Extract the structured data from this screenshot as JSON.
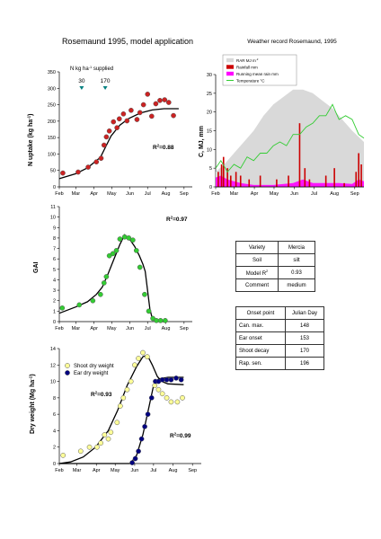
{
  "titles": {
    "main": "Rosemaund 1995, model application",
    "weather": "Weather record Rosemaund, 1995"
  },
  "months": [
    "Feb",
    "Mar",
    "Apr",
    "May",
    "Jun",
    "Jul",
    "Aug",
    "Sep"
  ],
  "month_start_doy": [
    32,
    60,
    91,
    121,
    152,
    182,
    213,
    244
  ],
  "chart_data": [
    {
      "id": "n_uptake",
      "type": "scatter",
      "ylabel": "N uptake (kg ha-1)",
      "ylabel_main": "N uptake (kg ha",
      "ylabel_sup": "-1",
      "ylabel_end": ")",
      "ylim": [
        0,
        350
      ],
      "yticks": [
        0,
        50,
        100,
        150,
        200,
        250,
        300,
        350
      ],
      "xlim": [
        32,
        258
      ],
      "annotation_main": "N kg ha",
      "annotation_sup": "-1",
      "annotation_end": " supplied",
      "n_applications": [
        {
          "doy": 70,
          "label": "30"
        },
        {
          "doy": 110,
          "label": "170"
        }
      ],
      "r2_main": "R",
      "r2_sup": "2",
      "r2_value": "=0.88",
      "points": [
        {
          "x": 38,
          "y": 42
        },
        {
          "x": 64,
          "y": 45
        },
        {
          "x": 81,
          "y": 60
        },
        {
          "x": 95,
          "y": 76
        },
        {
          "x": 103,
          "y": 87
        },
        {
          "x": 108,
          "y": 127
        },
        {
          "x": 112,
          "y": 152
        },
        {
          "x": 117,
          "y": 170
        },
        {
          "x": 124,
          "y": 198
        },
        {
          "x": 130,
          "y": 180
        },
        {
          "x": 134,
          "y": 207
        },
        {
          "x": 141,
          "y": 222
        },
        {
          "x": 147,
          "y": 201
        },
        {
          "x": 154,
          "y": 233
        },
        {
          "x": 164,
          "y": 205
        },
        {
          "x": 169,
          "y": 226
        },
        {
          "x": 175,
          "y": 250
        },
        {
          "x": 182,
          "y": 282
        },
        {
          "x": 189,
          "y": 215
        },
        {
          "x": 196,
          "y": 253
        },
        {
          "x": 203,
          "y": 263
        },
        {
          "x": 211,
          "y": 265
        },
        {
          "x": 218,
          "y": 257
        },
        {
          "x": 226,
          "y": 217
        }
      ],
      "model": [
        {
          "x": 32,
          "y": 25
        },
        {
          "x": 60,
          "y": 40
        },
        {
          "x": 80,
          "y": 58
        },
        {
          "x": 95,
          "y": 80
        },
        {
          "x": 102,
          "y": 90
        },
        {
          "x": 108,
          "y": 112
        },
        {
          "x": 120,
          "y": 155
        },
        {
          "x": 135,
          "y": 188
        },
        {
          "x": 150,
          "y": 208
        },
        {
          "x": 170,
          "y": 225
        },
        {
          "x": 190,
          "y": 234
        },
        {
          "x": 210,
          "y": 238
        },
        {
          "x": 235,
          "y": 238
        }
      ]
    },
    {
      "id": "weather",
      "type": "area",
      "title": "Weather record Rosemaund, 1995",
      "ylabel": "C, MJ, mm",
      "ylim": [
        0,
        30
      ],
      "yticks": [
        0,
        5,
        10,
        15,
        20,
        25,
        30
      ],
      "xlim": [
        32,
        258
      ],
      "legend": [
        "RAR MJ m-2",
        "Rainfall mm",
        "Running mean rain mm",
        "Temperature °C"
      ],
      "legend_main": [
        "RAR MJ m",
        "Rainfall mm",
        "Running mean rain mm",
        "Temperature °C"
      ],
      "legend_sup": [
        "-2",
        "",
        "",
        ""
      ],
      "series_colors": {
        "radiation": "#d9d9d9",
        "rainfall": "#cc0000",
        "running_mean": "#ff00ff",
        "temperature": "#33cc33"
      },
      "temperature": [
        {
          "x": 32,
          "y": 5
        },
        {
          "x": 40,
          "y": 7
        },
        {
          "x": 50,
          "y": 4
        },
        {
          "x": 60,
          "y": 6
        },
        {
          "x": 70,
          "y": 5
        },
        {
          "x": 80,
          "y": 8
        },
        {
          "x": 90,
          "y": 7
        },
        {
          "x": 100,
          "y": 9
        },
        {
          "x": 110,
          "y": 9
        },
        {
          "x": 120,
          "y": 11
        },
        {
          "x": 130,
          "y": 12
        },
        {
          "x": 140,
          "y": 11
        },
        {
          "x": 150,
          "y": 14
        },
        {
          "x": 160,
          "y": 14
        },
        {
          "x": 170,
          "y": 16
        },
        {
          "x": 180,
          "y": 17
        },
        {
          "x": 190,
          "y": 19
        },
        {
          "x": 200,
          "y": 19
        },
        {
          "x": 210,
          "y": 22
        },
        {
          "x": 215,
          "y": 20
        },
        {
          "x": 220,
          "y": 18
        },
        {
          "x": 230,
          "y": 19
        },
        {
          "x": 240,
          "y": 18
        },
        {
          "x": 250,
          "y": 14
        },
        {
          "x": 258,
          "y": 13
        }
      ],
      "radiation": [
        {
          "x": 32,
          "y": 4
        },
        {
          "x": 45,
          "y": 6
        },
        {
          "x": 60,
          "y": 9
        },
        {
          "x": 75,
          "y": 12
        },
        {
          "x": 90,
          "y": 15
        },
        {
          "x": 105,
          "y": 19
        },
        {
          "x": 120,
          "y": 22
        },
        {
          "x": 135,
          "y": 24
        },
        {
          "x": 150,
          "y": 26
        },
        {
          "x": 165,
          "y": 26
        },
        {
          "x": 180,
          "y": 25
        },
        {
          "x": 195,
          "y": 23
        },
        {
          "x": 210,
          "y": 21
        },
        {
          "x": 225,
          "y": 18
        },
        {
          "x": 240,
          "y": 15
        },
        {
          "x": 258,
          "y": 12
        }
      ],
      "rainfall": [
        {
          "x": 36,
          "y": 4
        },
        {
          "x": 41,
          "y": 6
        },
        {
          "x": 44,
          "y": 8
        },
        {
          "x": 50,
          "y": 5
        },
        {
          "x": 55,
          "y": 3
        },
        {
          "x": 63,
          "y": 4
        },
        {
          "x": 70,
          "y": 3
        },
        {
          "x": 83,
          "y": 2
        },
        {
          "x": 100,
          "y": 3
        },
        {
          "x": 125,
          "y": 2
        },
        {
          "x": 143,
          "y": 3
        },
        {
          "x": 160,
          "y": 17
        },
        {
          "x": 168,
          "y": 5
        },
        {
          "x": 175,
          "y": 2
        },
        {
          "x": 200,
          "y": 3
        },
        {
          "x": 213,
          "y": 5
        },
        {
          "x": 228,
          "y": 1
        },
        {
          "x": 246,
          "y": 4
        },
        {
          "x": 250,
          "y": 9
        },
        {
          "x": 254,
          "y": 6
        }
      ],
      "running_mean": [
        {
          "x": 32,
          "y": 2.5
        },
        {
          "x": 40,
          "y": 3
        },
        {
          "x": 50,
          "y": 2
        },
        {
          "x": 60,
          "y": 1.5
        },
        {
          "x": 70,
          "y": 1
        },
        {
          "x": 90,
          "y": 0.5
        },
        {
          "x": 120,
          "y": 0.5
        },
        {
          "x": 150,
          "y": 1
        },
        {
          "x": 165,
          "y": 2
        },
        {
          "x": 180,
          "y": 1
        },
        {
          "x": 200,
          "y": 1
        },
        {
          "x": 220,
          "y": 1
        },
        {
          "x": 240,
          "y": 0.8
        },
        {
          "x": 250,
          "y": 2
        },
        {
          "x": 258,
          "y": 1.5
        }
      ]
    },
    {
      "id": "gai",
      "type": "scatter",
      "ylabel": "GAI",
      "ylim": [
        0,
        11
      ],
      "yticks": [
        0,
        1,
        2,
        3,
        4,
        5,
        6,
        7,
        8,
        9,
        10,
        11
      ],
      "xlim": [
        32,
        258
      ],
      "r2_main": "R",
      "r2_sup": "2",
      "r2_value": "=0.97",
      "points": [
        {
          "x": 37,
          "y": 1.3
        },
        {
          "x": 66,
          "y": 1.6
        },
        {
          "x": 89,
          "y": 2.0
        },
        {
          "x": 102,
          "y": 2.6
        },
        {
          "x": 108,
          "y": 3.7
        },
        {
          "x": 112,
          "y": 4.3
        },
        {
          "x": 117,
          "y": 6.3
        },
        {
          "x": 123,
          "y": 6.5
        },
        {
          "x": 129,
          "y": 6.8
        },
        {
          "x": 135,
          "y": 7.9
        },
        {
          "x": 143,
          "y": 8.1
        },
        {
          "x": 150,
          "y": 8.0
        },
        {
          "x": 157,
          "y": 7.8
        },
        {
          "x": 163,
          "y": 6.8
        },
        {
          "x": 169,
          "y": 5.2
        },
        {
          "x": 177,
          "y": 2.6
        },
        {
          "x": 184,
          "y": 1.0
        },
        {
          "x": 191,
          "y": 0.3
        },
        {
          "x": 197,
          "y": 0.1
        },
        {
          "x": 204,
          "y": 0.1
        },
        {
          "x": 212,
          "y": 0.1
        }
      ],
      "model": [
        {
          "x": 32,
          "y": 0.8
        },
        {
          "x": 60,
          "y": 1.4
        },
        {
          "x": 80,
          "y": 1.9
        },
        {
          "x": 95,
          "y": 2.6
        },
        {
          "x": 105,
          "y": 3.3
        },
        {
          "x": 115,
          "y": 4.6
        },
        {
          "x": 125,
          "y": 6.0
        },
        {
          "x": 135,
          "y": 7.4
        },
        {
          "x": 143,
          "y": 8.3
        },
        {
          "x": 150,
          "y": 8.0
        },
        {
          "x": 160,
          "y": 7.2
        },
        {
          "x": 168,
          "y": 6.3
        },
        {
          "x": 174,
          "y": 5.5
        },
        {
          "x": 178,
          "y": 4.8
        },
        {
          "x": 182,
          "y": 3.0
        },
        {
          "x": 186,
          "y": 1.2
        },
        {
          "x": 190,
          "y": 0.3
        },
        {
          "x": 196,
          "y": 0
        },
        {
          "x": 215,
          "y": 0
        }
      ]
    },
    {
      "id": "dry_weight",
      "type": "scatter",
      "ylabel": "Dry weight (Mg ha-1)",
      "ylabel_main": "Dry weight (Mg ha",
      "ylabel_sup": "-1",
      "ylabel_end": ")",
      "ylim": [
        0,
        14
      ],
      "yticks": [
        0,
        2,
        4,
        6,
        8,
        10,
        12,
        14
      ],
      "xlim": [
        32,
        258
      ],
      "legend": [
        "Shoot dry weight",
        "Ear dry weight"
      ],
      "shoot_r2_main": "R",
      "shoot_r2_sup": "2",
      "shoot_r2_value": "=0.93",
      "ear_r2_main": "R",
      "ear_r2_sup": "2",
      "ear_r2_value": "=0.99",
      "series": [
        {
          "name": "Shoot dry weight",
          "points": [
            {
              "x": 38,
              "y": 1.0
            },
            {
              "x": 66,
              "y": 1.5
            },
            {
              "x": 80,
              "y": 2.0
            },
            {
              "x": 92,
              "y": 2.0
            },
            {
              "x": 98,
              "y": 2.5
            },
            {
              "x": 104,
              "y": 3.5
            },
            {
              "x": 110,
              "y": 3.0
            },
            {
              "x": 114,
              "y": 3.8
            },
            {
              "x": 124,
              "y": 5.0
            },
            {
              "x": 129,
              "y": 7.0
            },
            {
              "x": 134,
              "y": 8.0
            },
            {
              "x": 140,
              "y": 9.0
            },
            {
              "x": 146,
              "y": 10.0
            },
            {
              "x": 152,
              "y": 12.0
            },
            {
              "x": 158,
              "y": 12.8
            },
            {
              "x": 165,
              "y": 13.5
            },
            {
              "x": 172,
              "y": 13.0
            },
            {
              "x": 184,
              "y": 9.5
            },
            {
              "x": 190,
              "y": 9.0
            },
            {
              "x": 196,
              "y": 8.5
            },
            {
              "x": 203,
              "y": 8.0
            },
            {
              "x": 210,
              "y": 7.5
            },
            {
              "x": 220,
              "y": 7.5
            },
            {
              "x": 228,
              "y": 8.0
            }
          ],
          "model": [
            {
              "x": 32,
              "y": 0
            },
            {
              "x": 50,
              "y": 0.2
            },
            {
              "x": 70,
              "y": 0.8
            },
            {
              "x": 90,
              "y": 2.0
            },
            {
              "x": 110,
              "y": 4.0
            },
            {
              "x": 125,
              "y": 6.5
            },
            {
              "x": 140,
              "y": 9.5
            },
            {
              "x": 155,
              "y": 11.8
            },
            {
              "x": 165,
              "y": 13.0
            },
            {
              "x": 172,
              "y": 13.2
            },
            {
              "x": 180,
              "y": 12.0
            },
            {
              "x": 188,
              "y": 10.6
            },
            {
              "x": 195,
              "y": 10.0
            },
            {
              "x": 205,
              "y": 9.7
            },
            {
              "x": 230,
              "y": 9.6
            }
          ]
        },
        {
          "name": "Ear dry weight",
          "points": [
            {
              "x": 148,
              "y": 0.1
            },
            {
              "x": 153,
              "y": 0.6
            },
            {
              "x": 158,
              "y": 1.5
            },
            {
              "x": 163,
              "y": 3.0
            },
            {
              "x": 168,
              "y": 4.5
            },
            {
              "x": 173,
              "y": 6.0
            },
            {
              "x": 179,
              "y": 8.0
            },
            {
              "x": 185,
              "y": 10.0
            },
            {
              "x": 190,
              "y": 10.0
            },
            {
              "x": 196,
              "y": 10.2
            },
            {
              "x": 203,
              "y": 10.2
            },
            {
              "x": 210,
              "y": 10.2
            },
            {
              "x": 218,
              "y": 10.4
            },
            {
              "x": 226,
              "y": 10.2
            }
          ],
          "model": [
            {
              "x": 32,
              "y": 0
            },
            {
              "x": 145,
              "y": 0
            },
            {
              "x": 155,
              "y": 1.0
            },
            {
              "x": 165,
              "y": 3.5
            },
            {
              "x": 175,
              "y": 7.0
            },
            {
              "x": 182,
              "y": 9.5
            },
            {
              "x": 190,
              "y": 10.3
            },
            {
              "x": 205,
              "y": 10.5
            },
            {
              "x": 230,
              "y": 10.5
            }
          ]
        }
      ]
    }
  ],
  "variety_table": {
    "rows": [
      {
        "key": "Variety",
        "value": "Mercia"
      },
      {
        "key": "Soil",
        "value": "silt"
      },
      {
        "key": "Model R",
        "sup": "2",
        "value": "0.93"
      },
      {
        "key": "Comment",
        "value": "medium"
      }
    ]
  },
  "onset_table": {
    "header": {
      "key": "Onset point",
      "value": "Julian Day"
    },
    "rows": [
      {
        "key": "Can. max.",
        "value": "148"
      },
      {
        "key": "Ear onset",
        "value": "153"
      },
      {
        "key": "Shoot decay",
        "value": "170"
      },
      {
        "key": "Rap. sen.",
        "value": "196"
      }
    ]
  },
  "colors": {
    "n_points": "#cc2222",
    "gai_points": "#33cc33",
    "shoot_points": "#ffff99",
    "ear_points": "#000080",
    "n_marker": "#008080"
  }
}
